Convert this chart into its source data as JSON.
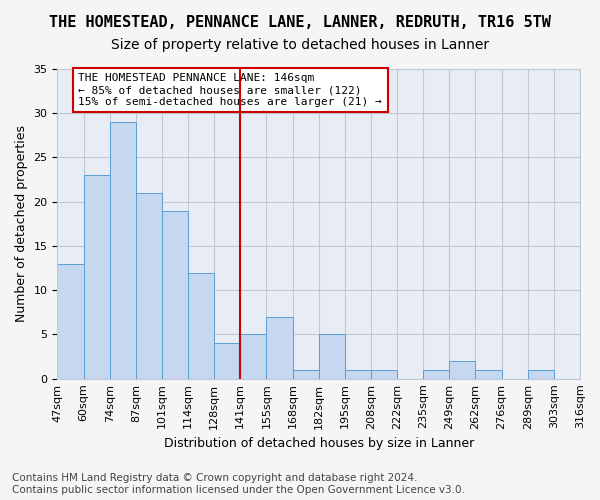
{
  "title": "THE HOMESTEAD, PENNANCE LANE, LANNER, REDRUTH, TR16 5TW",
  "subtitle": "Size of property relative to detached houses in Lanner",
  "xlabel": "Distribution of detached houses by size in Lanner",
  "ylabel": "Number of detached properties",
  "bar_values": [
    13,
    23,
    29,
    21,
    19,
    12,
    4,
    5,
    7,
    1,
    5,
    1,
    1,
    0,
    1,
    2,
    1,
    0,
    1,
    0
  ],
  "bin_labels": [
    "47sqm",
    "60sqm",
    "74sqm",
    "87sqm",
    "101sqm",
    "114sqm",
    "128sqm",
    "141sqm",
    "155sqm",
    "168sqm",
    "182sqm",
    "195sqm",
    "208sqm",
    "222sqm",
    "235sqm",
    "249sqm",
    "262sqm",
    "276sqm",
    "289sqm",
    "303sqm",
    "316sqm"
  ],
  "bar_color": "#c5d8f0",
  "bar_edge_color": "#5a9fd4",
  "vline_x": 7,
  "vline_color": "#cc0000",
  "annotation_text": "THE HOMESTEAD PENNANCE LANE: 146sqm\n← 85% of detached houses are smaller (122)\n15% of semi-detached houses are larger (21) →",
  "annotation_box_color": "#ffffff",
  "annotation_box_edge": "#cc0000",
  "ylim": [
    0,
    35
  ],
  "yticks": [
    0,
    5,
    10,
    15,
    20,
    25,
    30,
    35
  ],
  "grid_color": "#c0c8d8",
  "background_color": "#e8edf5",
  "footer_line1": "Contains HM Land Registry data © Crown copyright and database right 2024.",
  "footer_line2": "Contains public sector information licensed under the Open Government Licence v3.0.",
  "title_fontsize": 11,
  "subtitle_fontsize": 10,
  "xlabel_fontsize": 9,
  "ylabel_fontsize": 9,
  "tick_fontsize": 8,
  "annotation_fontsize": 8,
  "footer_fontsize": 7.5
}
